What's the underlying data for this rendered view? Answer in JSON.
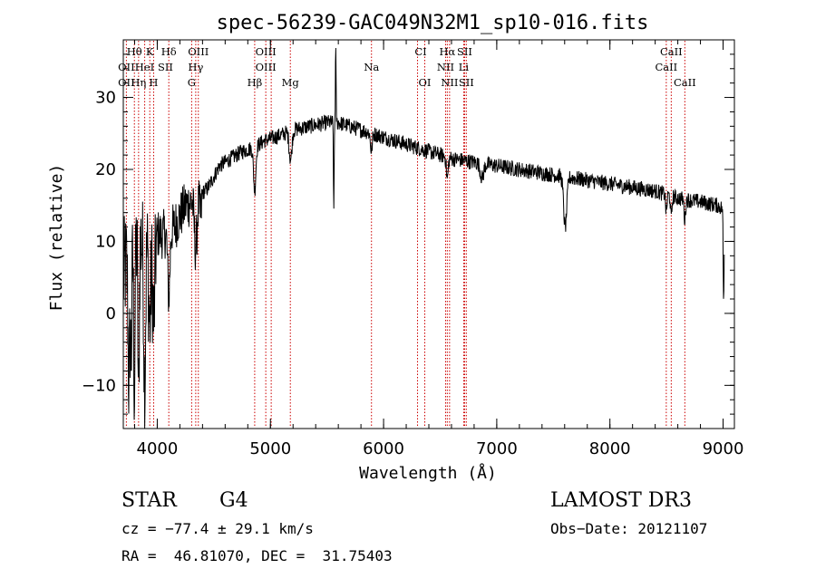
{
  "chart_data": {
    "type": "line",
    "title": "spec-56239-GAC049N32M1_sp10-016.fits",
    "xlabel": "Wavelength (Å)",
    "ylabel": "Flux (relative)",
    "xlim": [
      3700,
      9100
    ],
    "ylim": [
      -16,
      38
    ],
    "x_ticks": [
      4000,
      5000,
      6000,
      7000,
      8000,
      9000
    ],
    "y_ticks": [
      -10,
      0,
      10,
      20,
      30
    ],
    "minor_x_step": 200,
    "minor_y_step": 2,
    "line_color": "#000000",
    "marker_color": "#cc0000",
    "series": [
      {
        "name": "spectrum",
        "continuum": [
          [
            3700,
            5
          ],
          [
            3760,
            9
          ],
          [
            3820,
            10
          ],
          [
            3900,
            10
          ],
          [
            3980,
            11
          ],
          [
            4060,
            11
          ],
          [
            4150,
            12
          ],
          [
            4250,
            15
          ],
          [
            4350,
            16
          ],
          [
            4450,
            17.5
          ],
          [
            4550,
            20.5
          ],
          [
            4650,
            21.5
          ],
          [
            4750,
            22.5
          ],
          [
            4850,
            23
          ],
          [
            4950,
            24
          ],
          [
            5050,
            24.5
          ],
          [
            5200,
            25.5
          ],
          [
            5350,
            26
          ],
          [
            5500,
            26.5
          ],
          [
            5600,
            26.5
          ],
          [
            5700,
            26
          ],
          [
            5800,
            25.5
          ],
          [
            5900,
            25
          ],
          [
            6000,
            24.5
          ],
          [
            6100,
            24
          ],
          [
            6200,
            23.5
          ],
          [
            6300,
            23
          ],
          [
            6400,
            22.5
          ],
          [
            6500,
            22
          ],
          [
            6600,
            21.5
          ],
          [
            6800,
            21
          ],
          [
            7000,
            20.5
          ],
          [
            7200,
            20
          ],
          [
            7400,
            19.5
          ],
          [
            7600,
            19
          ],
          [
            7800,
            18.5
          ],
          [
            8000,
            18
          ],
          [
            8200,
            17.5
          ],
          [
            8400,
            17
          ],
          [
            8600,
            16
          ],
          [
            8800,
            15.5
          ],
          [
            8950,
            15
          ],
          [
            9000,
            14.5
          ]
        ],
        "features": [
          {
            "x": 3750,
            "depth": 18,
            "width": 8
          },
          {
            "x": 3770,
            "depth": 14,
            "width": 6
          },
          {
            "x": 3798,
            "depth": 20,
            "width": 6
          },
          {
            "x": 3835,
            "depth": 22,
            "width": 6
          },
          {
            "x": 3889,
            "depth": 20,
            "width": 8
          },
          {
            "x": 3933,
            "depth": 12,
            "width": 10
          },
          {
            "x": 3969,
            "depth": 12,
            "width": 10
          },
          {
            "x": 4102,
            "depth": 9,
            "width": 10
          },
          {
            "x": 4340,
            "depth": 7,
            "width": 12
          },
          {
            "x": 4383,
            "depth": 3,
            "width": 8
          },
          {
            "x": 4861,
            "depth": 6,
            "width": 10
          },
          {
            "x": 5178,
            "depth": 4,
            "width": 12
          },
          {
            "x": 5577,
            "depth": -10,
            "width": 3
          },
          {
            "x": 5560,
            "depth": 13,
            "width": 3
          },
          {
            "x": 5892,
            "depth": 2.5,
            "width": 8
          },
          {
            "x": 6563,
            "depth": 3,
            "width": 8
          },
          {
            "x": 6870,
            "depth": 2,
            "width": 15
          },
          {
            "x": 7605,
            "depth": 7,
            "width": 14
          },
          {
            "x": 8498,
            "depth": 2.5,
            "width": 6
          },
          {
            "x": 8542,
            "depth": 3,
            "width": 6
          },
          {
            "x": 8662,
            "depth": 3,
            "width": 6
          },
          {
            "x": 9005,
            "depth": 13,
            "width": 4
          }
        ],
        "noise": [
          {
            "from": 3700,
            "to": 3990,
            "amplitude": 8
          },
          {
            "from": 3990,
            "to": 4400,
            "amplitude": 3.5
          },
          {
            "from": 4400,
            "to": 9010,
            "amplitude": 1.1
          }
        ],
        "x_end": 9010
      }
    ],
    "annotations": [
      {
        "label": "Hθ",
        "x": 3798,
        "row": 1
      },
      {
        "label": "K",
        "x": 3934,
        "row": 1
      },
      {
        "label": "Hδ",
        "x": 4102,
        "row": 1
      },
      {
        "label": "OIII",
        "x": 4363,
        "row": 1
      },
      {
        "label": "OIII",
        "x": 4959,
        "row": 1
      },
      {
        "label": "CI",
        "x": 6328,
        "row": 1
      },
      {
        "label": "Hα",
        "x": 6563,
        "row": 1
      },
      {
        "label": "SII",
        "x": 6716,
        "row": 1
      },
      {
        "label": "CaII",
        "x": 8542,
        "row": 1
      },
      {
        "label": "OII",
        "x": 3727,
        "row": 2
      },
      {
        "label": "HeI",
        "x": 3888,
        "row": 2
      },
      {
        "label": "SII",
        "x": 4072,
        "row": 2
      },
      {
        "label": "Hγ",
        "x": 4340,
        "row": 2
      },
      {
        "label": "OIII",
        "x": 4959,
        "row": 2
      },
      {
        "label": "Na",
        "x": 5893,
        "row": 2
      },
      {
        "label": "NII",
        "x": 6548,
        "row": 2
      },
      {
        "label": "Li",
        "x": 6708,
        "row": 2
      },
      {
        "label": "CaII",
        "x": 8498,
        "row": 2
      },
      {
        "label": "OII",
        "x": 3727,
        "row": 3
      },
      {
        "label": "Hη",
        "x": 3835,
        "row": 3
      },
      {
        "label": "H",
        "x": 3968,
        "row": 3
      },
      {
        "label": "G",
        "x": 4304,
        "row": 3
      },
      {
        "label": "Hβ",
        "x": 4861,
        "row": 3
      },
      {
        "label": "Mg",
        "x": 5176,
        "row": 3
      },
      {
        "label": "OI",
        "x": 6364,
        "row": 3
      },
      {
        "label": "NII",
        "x": 6583,
        "row": 3
      },
      {
        "label": "SII",
        "x": 6731,
        "row": 3
      },
      {
        "label": "CaII",
        "x": 8662,
        "row": 3
      }
    ],
    "marker_lines": [
      3727,
      3798,
      3835,
      3889,
      3934,
      3968,
      4102,
      4304,
      4340,
      4363,
      4861,
      4959,
      5007,
      5176,
      5893,
      6300,
      6364,
      6548,
      6563,
      6583,
      6708,
      6716,
      6731,
      8498,
      8542,
      8662
    ]
  },
  "info": {
    "object_class": "STAR",
    "subclass": "G4",
    "survey": "LAMOST DR3",
    "cz": "cz = −77.4 ± 29.1 km/s",
    "obs_date": "Obs−Date: 20121107",
    "coords": "RA =  46.81070, DEC =  31.75403"
  }
}
